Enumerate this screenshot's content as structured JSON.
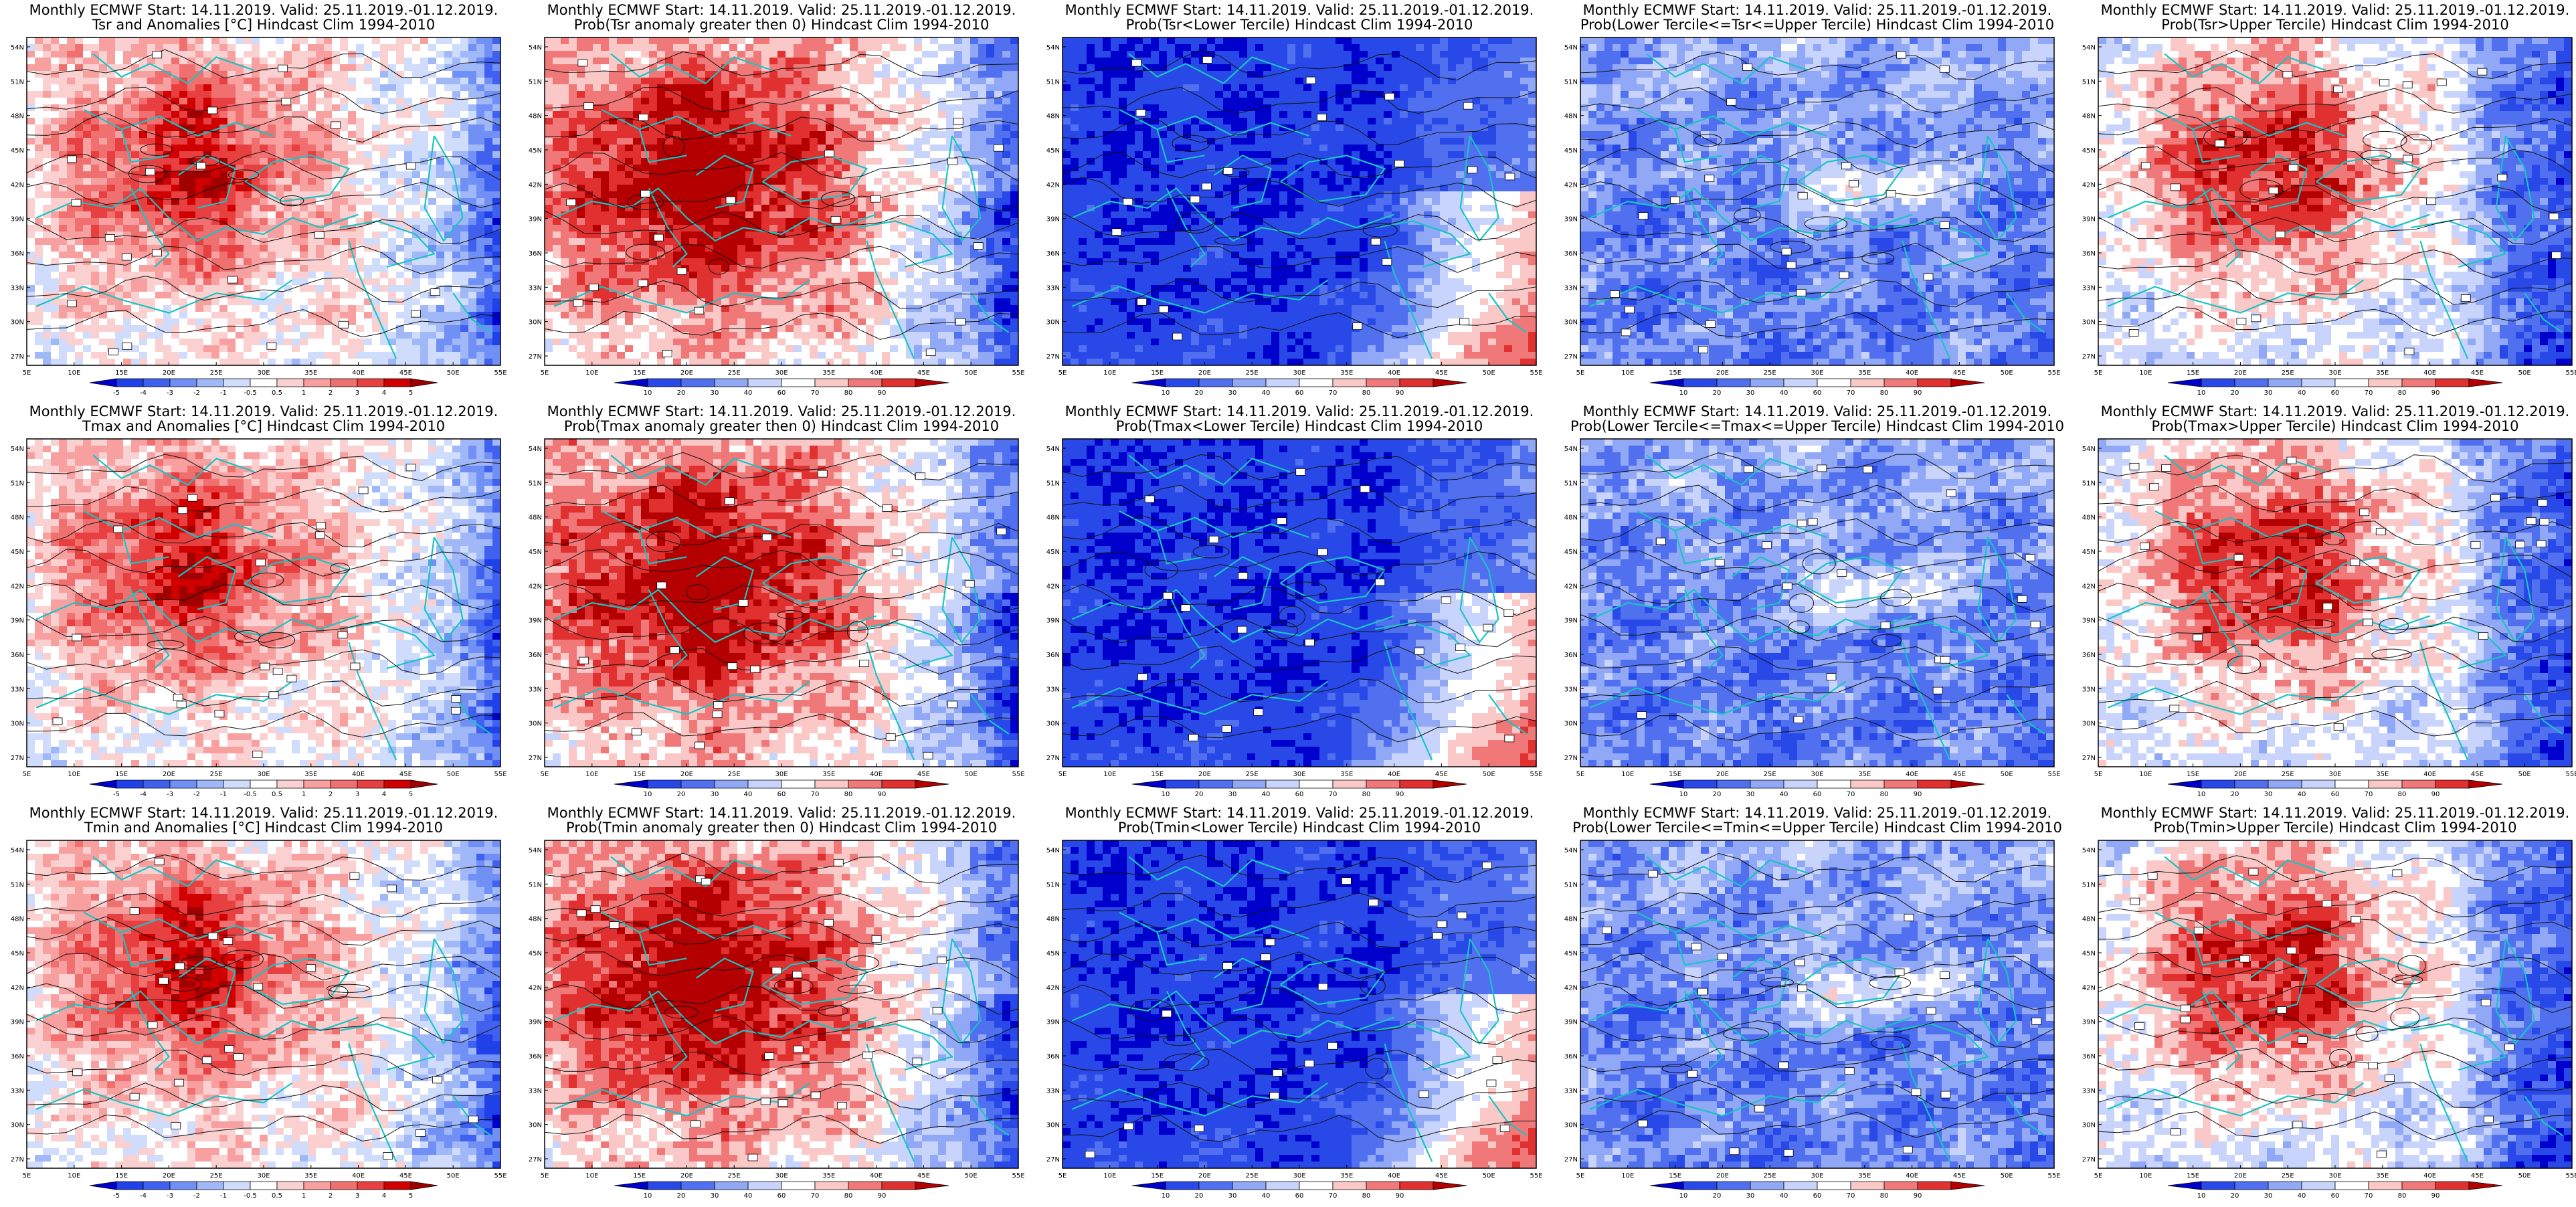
{
  "header_prefix": "Monthly ECMWF Start: 14.11.2019. Valid: 25.11.2019.-01.12.2019.",
  "lon_ticks": [
    "5E",
    "10E",
    "15E",
    "20E",
    "25E",
    "30E",
    "35E",
    "40E",
    "45E",
    "50E",
    "55E"
  ],
  "lat_ticks": [
    "27N",
    "30N",
    "33N",
    "36N",
    "39N",
    "42N",
    "45N",
    "48N",
    "51N",
    "54N"
  ],
  "colorbars": {
    "anomaly": {
      "labels": [
        "-5",
        "-4",
        "-3",
        "-2",
        "-1",
        "-0.5",
        "0.5",
        "1",
        "2",
        "3",
        "4",
        "5"
      ],
      "colors": [
        "#0000cd",
        "#2040e8",
        "#4060f0",
        "#7090f5",
        "#a0b8f8",
        "#d0dcfb",
        "#ffffff",
        "#fbd0d0",
        "#f8a0a0",
        "#f07070",
        "#e84040",
        "#d00000",
        "#a00000"
      ]
    },
    "probability": {
      "labels": [
        "10",
        "20",
        "30",
        "40",
        "60",
        "70",
        "80",
        "90"
      ],
      "colors": [
        "#0000cd",
        "#2848e8",
        "#5070f0",
        "#90a8f5",
        "#c8d4fb",
        "#ffffff",
        "#fbc8c8",
        "#f07878",
        "#e03030",
        "#b40000"
      ]
    }
  },
  "rows": [
    {
      "variable": "Tsr",
      "panels": [
        {
          "id": "tsr-anomaly",
          "title_line2": "Tsr and Anomalies [°C] Hindcast Clim 1994-2010",
          "colorbar": "anomaly",
          "field": "warm-west"
        },
        {
          "id": "tsr-prob-positive",
          "title_line2": "Prob(Tsr anomaly greater then 0) Hindcast Clim 1994-2010",
          "colorbar": "probability",
          "field": "warm-strong"
        },
        {
          "id": "tsr-prob-lower",
          "title_line2": "Prob(Tsr<Lower Tercile) Hindcast Clim 1994-2010",
          "colorbar": "probability",
          "field": "cold-prob"
        },
        {
          "id": "tsr-prob-middle",
          "title_line2": "Prob(Lower Tercile<=Tsr<=Upper Tercile) Hindcast Clim 1994-2010",
          "colorbar": "probability",
          "field": "neutral"
        },
        {
          "id": "tsr-prob-upper",
          "title_line2": "Prob(Tsr>Upper Tercile) Hindcast Clim 1994-2010",
          "colorbar": "probability",
          "field": "warm-upper"
        }
      ]
    },
    {
      "variable": "Tmax",
      "panels": [
        {
          "id": "tmax-anomaly",
          "title_line2": "Tmax and Anomalies [°C] Hindcast Clim 1994-2010",
          "colorbar": "anomaly",
          "field": "warm-west"
        },
        {
          "id": "tmax-prob-positive",
          "title_line2": "Prob(Tmax anomaly greater then 0) Hindcast Clim 1994-2010",
          "colorbar": "probability",
          "field": "warm-strong"
        },
        {
          "id": "tmax-prob-lower",
          "title_line2": "Prob(Tmax<Lower Tercile) Hindcast Clim 1994-2010",
          "colorbar": "probability",
          "field": "cold-prob"
        },
        {
          "id": "tmax-prob-middle",
          "title_line2": "Prob(Lower Tercile<=Tmax<=Upper Tercile) Hindcast Clim 1994-2010",
          "colorbar": "probability",
          "field": "neutral"
        },
        {
          "id": "tmax-prob-upper",
          "title_line2": "Prob(Tmax>Upper Tercile) Hindcast Clim 1994-2010",
          "colorbar": "probability",
          "field": "warm-upper"
        }
      ]
    },
    {
      "variable": "Tmin",
      "panels": [
        {
          "id": "tmin-anomaly",
          "title_line2": "Tmin and Anomalies [°C] Hindcast Clim 1994-2010",
          "colorbar": "anomaly",
          "field": "warm-west"
        },
        {
          "id": "tmin-prob-positive",
          "title_line2": "Prob(Tmin anomaly greater then 0) Hindcast Clim 1994-2010",
          "colorbar": "probability",
          "field": "warm-strong"
        },
        {
          "id": "tmin-prob-lower",
          "title_line2": "Prob(Tmin<Lower Tercile) Hindcast Clim 1994-2010",
          "colorbar": "probability",
          "field": "cold-prob"
        },
        {
          "id": "tmin-prob-middle",
          "title_line2": "Prob(Lower Tercile<=Tmin<=Upper Tercile) Hindcast Clim 1994-2010",
          "colorbar": "probability",
          "field": "neutral"
        },
        {
          "id": "tmin-prob-upper",
          "title_line2": "Prob(Tmin>Upper Tercile) Hindcast Clim 1994-2010",
          "colorbar": "probability",
          "field": "warm-upper"
        }
      ]
    }
  ]
}
